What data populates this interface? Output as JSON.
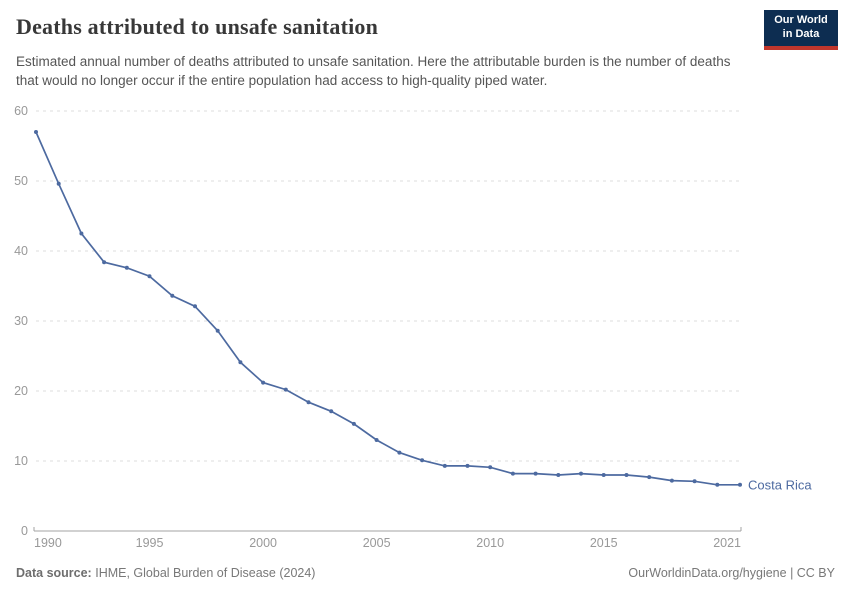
{
  "header": {
    "title": "Deaths attributed to unsafe sanitation",
    "subtitle": "Estimated annual number of deaths attributed to unsafe sanitation. Here the attributable burden is the number of deaths that would no longer occur if the entire population had access to high-quality piped water.",
    "logo": {
      "line1": "Our World",
      "line2": "in Data"
    }
  },
  "colors": {
    "line": "#4d6aa0",
    "grid": "#dddddd",
    "axis": "#a3a3a3",
    "tick_label": "#999999",
    "title": "#383838",
    "subtitle": "#555555",
    "footer": "#787878",
    "logo_bg": "#0d2d51",
    "logo_accent": "#c0362c"
  },
  "chart_data": {
    "type": "line",
    "title": "Deaths attributed to unsafe sanitation",
    "xlabel": "",
    "ylabel": "",
    "ylim": [
      0,
      60
    ],
    "yticks": [
      0,
      10,
      20,
      30,
      40,
      50,
      60
    ],
    "xticks": [
      1990,
      1995,
      2000,
      2005,
      2010,
      2015,
      2021
    ],
    "grid": "horizontal-dashed",
    "legend": "end-of-line-label",
    "x": [
      1990,
      1991,
      1992,
      1993,
      1994,
      1995,
      1996,
      1997,
      1998,
      1999,
      2000,
      2001,
      2002,
      2003,
      2004,
      2005,
      2006,
      2007,
      2008,
      2009,
      2010,
      2011,
      2012,
      2013,
      2014,
      2015,
      2016,
      2017,
      2018,
      2019,
      2020,
      2021
    ],
    "series": [
      {
        "name": "Costa Rica",
        "color": "#4d6aa0",
        "values": [
          57.0,
          49.6,
          42.5,
          38.4,
          37.6,
          36.4,
          33.6,
          32.1,
          28.6,
          24.1,
          21.2,
          20.2,
          18.4,
          17.1,
          15.3,
          13.0,
          11.2,
          10.1,
          9.3,
          9.3,
          9.1,
          8.2,
          8.2,
          8.0,
          8.2,
          8.0,
          8.0,
          7.7,
          7.2,
          7.1,
          6.6,
          6.6
        ]
      }
    ]
  },
  "footer": {
    "source_label": "Data source:",
    "source": "IHME, Global Burden of Disease (2024)",
    "attribution": "OurWorldinData.org/hygiene | CC BY"
  }
}
